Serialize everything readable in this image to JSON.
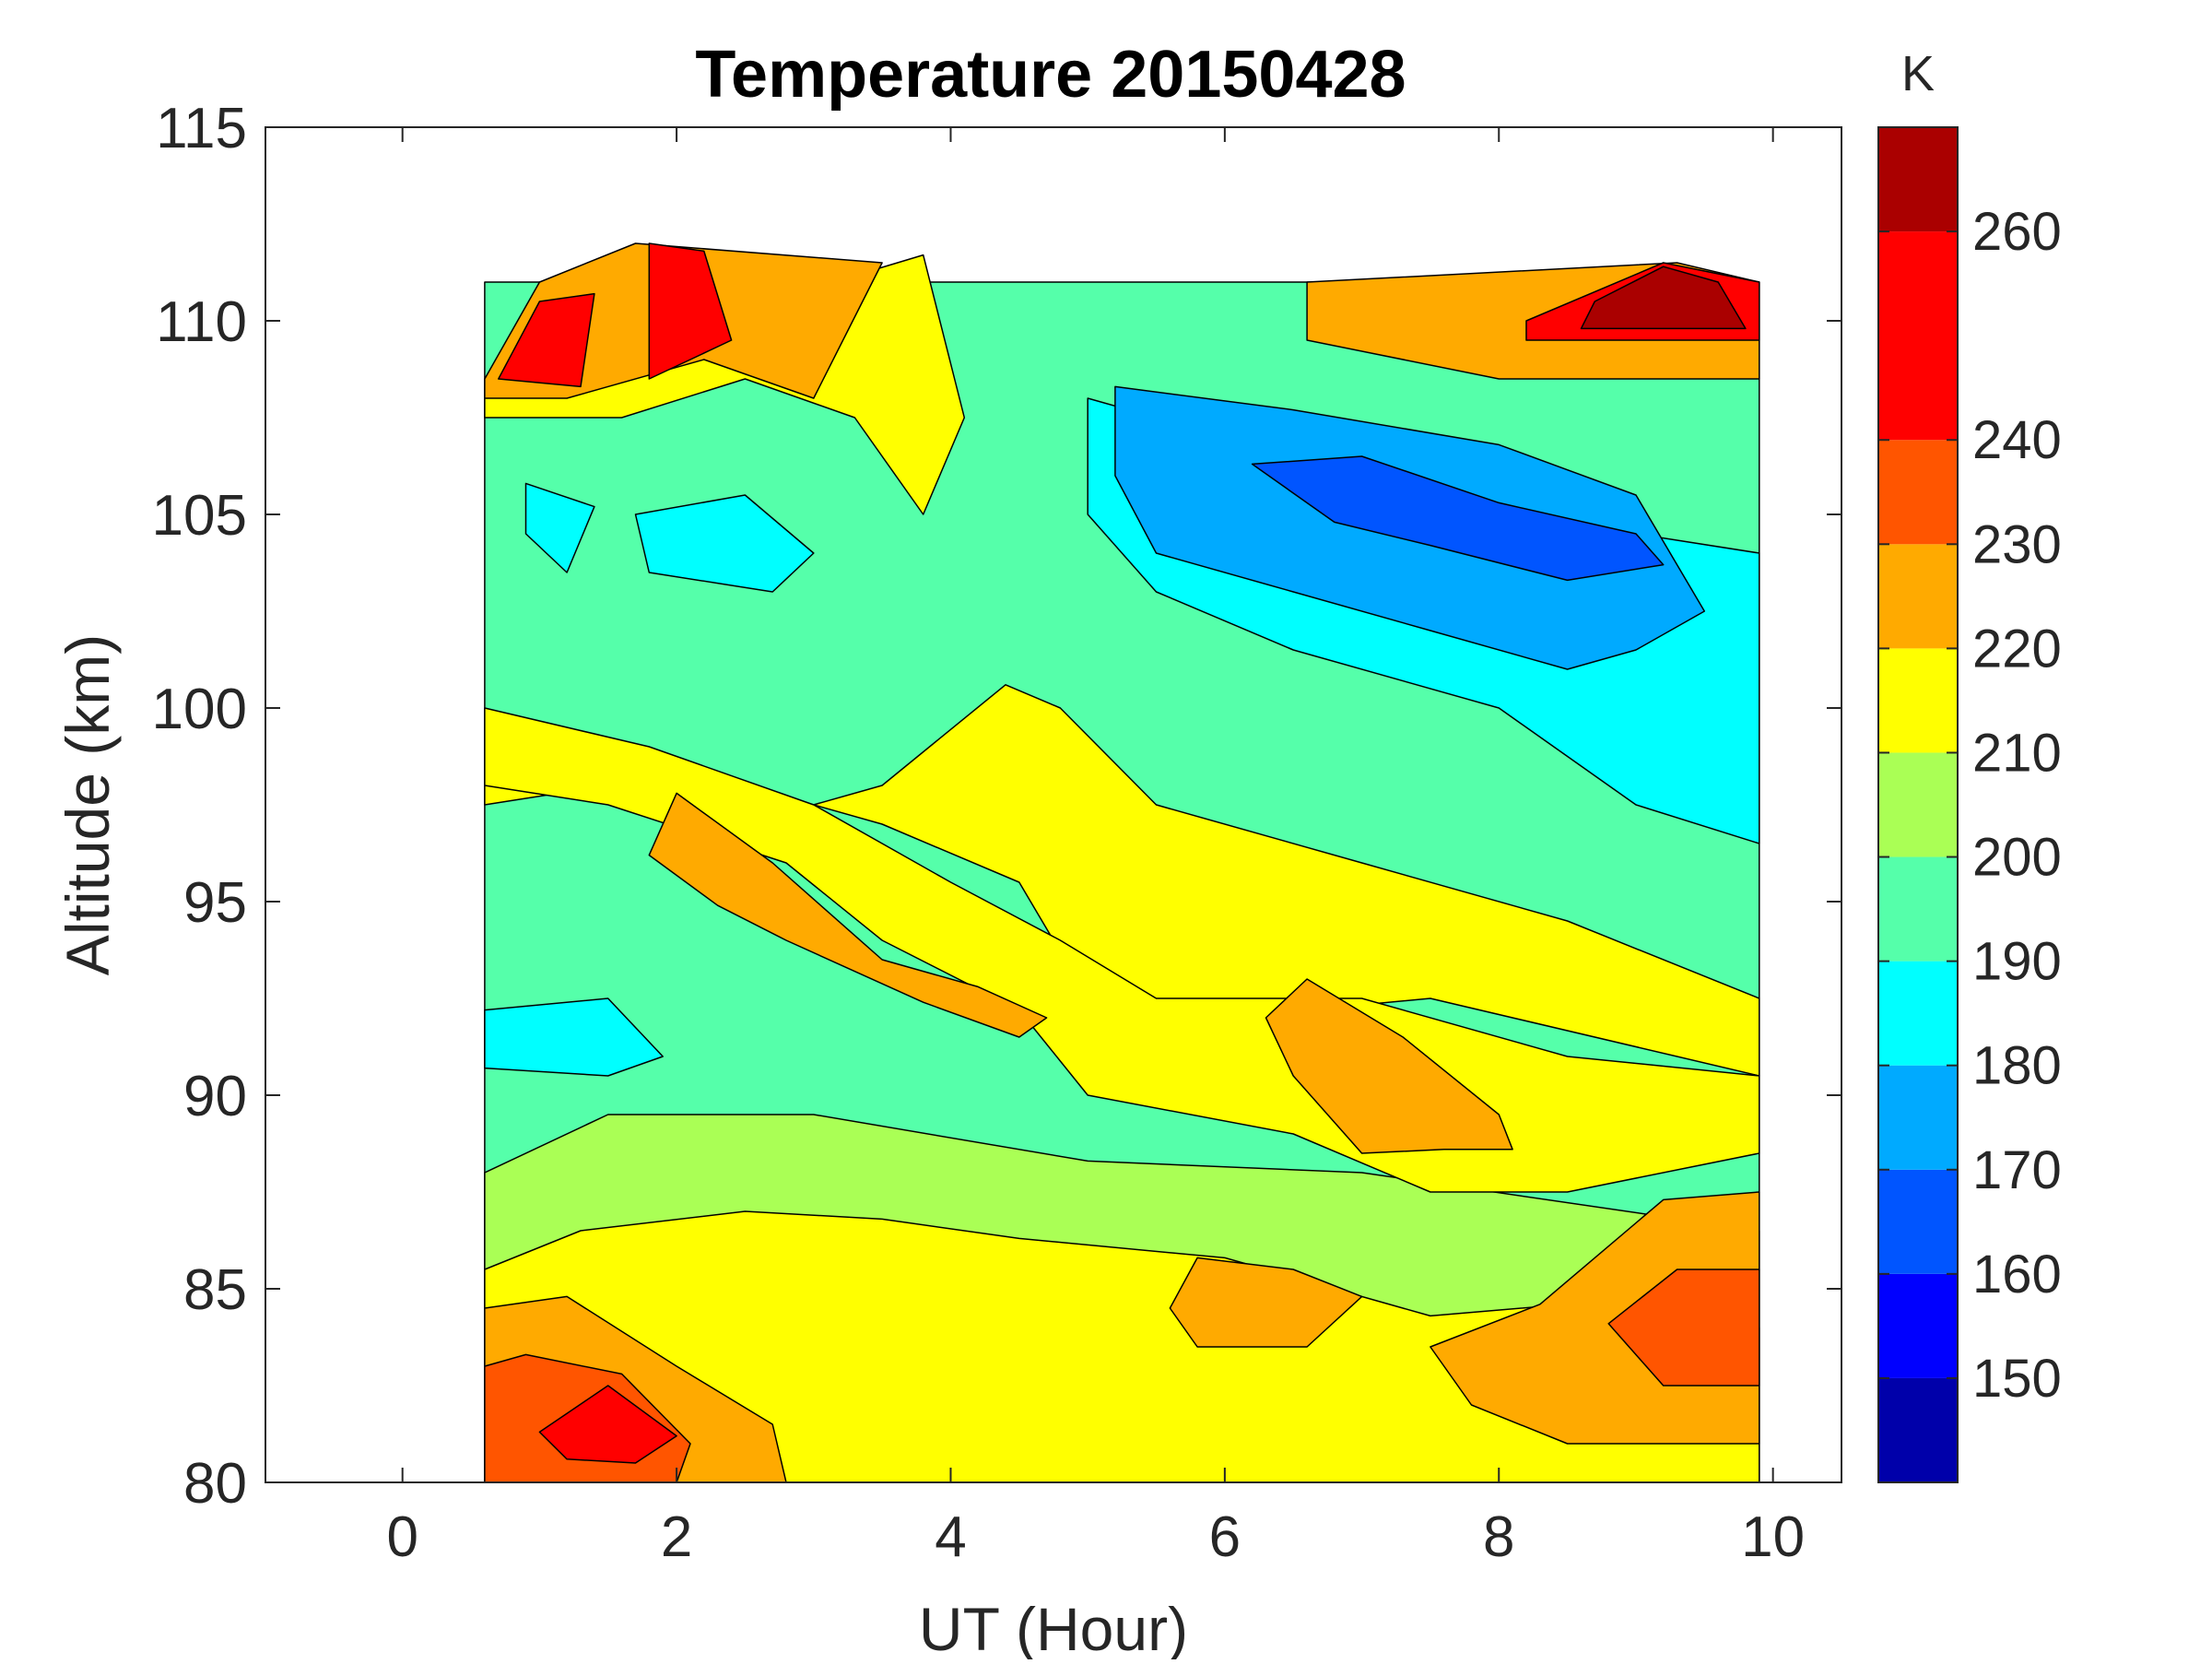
{
  "chart_data": {
    "type": "heatmap",
    "subtype": "filled-contour",
    "title": "Temperature 20150428",
    "xlabel": "UT (Hour)",
    "ylabel": "Altitude (km)",
    "xlim": [
      -1,
      10.5
    ],
    "ylim": [
      80,
      115
    ],
    "xticks": [
      0,
      2,
      4,
      6,
      8,
      10
    ],
    "yticks": [
      80,
      85,
      90,
      95,
      100,
      105,
      110,
      115
    ],
    "data_x_range": [
      0.6,
      9.9
    ],
    "data_y_range": [
      80,
      112
    ],
    "colorbar": {
      "unit_label": "K",
      "range": [
        140,
        270
      ],
      "ticks": [
        150,
        160,
        170,
        180,
        190,
        200,
        210,
        220,
        230,
        240,
        260
      ],
      "levels": [
        {
          "from": 140,
          "to": 150,
          "color": "#0000aa"
        },
        {
          "from": 150,
          "to": 160,
          "color": "#0000ff"
        },
        {
          "from": 160,
          "to": 170,
          "color": "#0055ff"
        },
        {
          "from": 170,
          "to": 180,
          "color": "#00aaff"
        },
        {
          "from": 180,
          "to": 190,
          "color": "#00ffff"
        },
        {
          "from": 190,
          "to": 200,
          "color": "#55ffaa"
        },
        {
          "from": 200,
          "to": 210,
          "color": "#aaff55"
        },
        {
          "from": 210,
          "to": 220,
          "color": "#ffff00"
        },
        {
          "from": 220,
          "to": 230,
          "color": "#ffaa00"
        },
        {
          "from": 230,
          "to": 240,
          "color": "#ff5500"
        },
        {
          "from": 240,
          "to": 260,
          "color": "#ff0000"
        },
        {
          "from": 260,
          "to": 270,
          "color": "#aa0000"
        }
      ]
    },
    "regions": [
      {
        "name": "base",
        "value": 195,
        "points": [
          [
            0.6,
            80
          ],
          [
            9.9,
            80
          ],
          [
            9.9,
            111
          ],
          [
            0.6,
            111
          ]
        ]
      },
      {
        "name": "lower-green",
        "value": 205,
        "points": [
          [
            0.6,
            80
          ],
          [
            9.9,
            80
          ],
          [
            9.9,
            86.5
          ],
          [
            7,
            88
          ],
          [
            5,
            88.3
          ],
          [
            3,
            89.5
          ],
          [
            1.5,
            89.5
          ],
          [
            0.6,
            88
          ]
        ]
      },
      {
        "name": "lower-yellow",
        "value": 215,
        "points": [
          [
            0.6,
            80
          ],
          [
            9.9,
            80
          ],
          [
            9.9,
            84
          ],
          [
            8.5,
            84.6
          ],
          [
            7.5,
            84.3
          ],
          [
            6,
            85.8
          ],
          [
            4.5,
            86.3
          ],
          [
            3.5,
            86.8
          ],
          [
            2.5,
            87
          ],
          [
            1.3,
            86.5
          ],
          [
            0.6,
            85.5
          ]
        ]
      },
      {
        "name": "lower-orange-left",
        "value": 225,
        "points": [
          [
            0.6,
            80
          ],
          [
            2.8,
            80
          ],
          [
            2.7,
            81.5
          ],
          [
            2,
            83
          ],
          [
            1.2,
            84.8
          ],
          [
            0.6,
            84.5
          ]
        ]
      },
      {
        "name": "lower-orange-center",
        "value": 225,
        "points": [
          [
            5.8,
            85.8
          ],
          [
            6.5,
            85.5
          ],
          [
            7,
            84.8
          ],
          [
            6.6,
            83.5
          ],
          [
            5.8,
            83.5
          ],
          [
            5.6,
            84.5
          ]
        ]
      },
      {
        "name": "lower-orange-right",
        "value": 225,
        "points": [
          [
            7.5,
            83.5
          ],
          [
            8.3,
            84.6
          ],
          [
            9.2,
            87.3
          ],
          [
            9.9,
            87.5
          ],
          [
            9.9,
            81
          ],
          [
            8.5,
            81
          ],
          [
            7.8,
            82
          ]
        ]
      },
      {
        "name": "lower-red-left",
        "value": 235,
        "points": [
          [
            0.6,
            80
          ],
          [
            2,
            80
          ],
          [
            2.1,
            81
          ],
          [
            1.6,
            82.8
          ],
          [
            0.9,
            83.3
          ],
          [
            0.6,
            83
          ]
        ]
      },
      {
        "name": "lower-red-right",
        "value": 235,
        "points": [
          [
            8.8,
            84.1
          ],
          [
            9.3,
            85.5
          ],
          [
            9.9,
            85.5
          ],
          [
            9.9,
            82.5
          ],
          [
            9.2,
            82.5
          ]
        ]
      },
      {
        "name": "lower-deep-red",
        "value": 245,
        "points": [
          [
            1.0,
            81.3
          ],
          [
            1.5,
            82.5
          ],
          [
            2.0,
            81.2
          ],
          [
            1.7,
            80.5
          ],
          [
            1.2,
            80.6
          ]
        ]
      },
      {
        "name": "mid-yellow-band",
        "value": 215,
        "points": [
          [
            0.6,
            99.5
          ],
          [
            2,
            98.5
          ],
          [
            3.5,
            97
          ],
          [
            4.5,
            95.5
          ],
          [
            5,
            92.5
          ],
          [
            6,
            92
          ],
          [
            7.5,
            92.5
          ],
          [
            9.9,
            90.5
          ],
          [
            9.9,
            92.5
          ],
          [
            8.5,
            94.5
          ],
          [
            7,
            96
          ],
          [
            5.5,
            97.5
          ],
          [
            4.8,
            100
          ],
          [
            4.4,
            100.6
          ],
          [
            3.5,
            98
          ],
          [
            2.5,
            97
          ],
          [
            1.5,
            98
          ],
          [
            0.6,
            97.5
          ]
        ]
      },
      {
        "name": "mid-yellow-left",
        "value": 215,
        "points": [
          [
            0.6,
            98
          ],
          [
            1.5,
            97.5
          ],
          [
            2.8,
            96
          ],
          [
            3.5,
            94
          ],
          [
            4.5,
            92.2
          ],
          [
            5,
            90
          ],
          [
            6.5,
            89
          ],
          [
            7.5,
            87.5
          ],
          [
            8.5,
            87.5
          ],
          [
            9.9,
            88.5
          ],
          [
            9.9,
            90.5
          ],
          [
            8.5,
            91
          ],
          [
            7,
            92.5
          ],
          [
            5.5,
            92.5
          ],
          [
            4.8,
            94
          ],
          [
            4,
            95.5
          ],
          [
            3,
            97.5
          ],
          [
            1.8,
            99
          ],
          [
            0.6,
            100
          ]
        ]
      },
      {
        "name": "mid-orange-diagonal",
        "value": 225,
        "points": [
          [
            2,
            97.8
          ],
          [
            2.7,
            96
          ],
          [
            3.5,
            93.5
          ],
          [
            4.2,
            92.8
          ],
          [
            4.7,
            92
          ],
          [
            4.5,
            91.5
          ],
          [
            3.8,
            92.4
          ],
          [
            2.8,
            94
          ],
          [
            2.3,
            94.9
          ],
          [
            1.8,
            96.2
          ]
        ]
      },
      {
        "name": "mid-orange-right",
        "value": 225,
        "points": [
          [
            6.6,
            93
          ],
          [
            7.3,
            91.5
          ],
          [
            8,
            89.5
          ],
          [
            8.1,
            88.6
          ],
          [
            7.6,
            88.6
          ],
          [
            7,
            88.5
          ],
          [
            6.5,
            90.5
          ],
          [
            6.3,
            92
          ]
        ]
      },
      {
        "name": "mid-cyan-left",
        "value": 185,
        "points": [
          [
            0.6,
            92.2
          ],
          [
            1.5,
            92.5
          ],
          [
            1.9,
            91
          ],
          [
            1.5,
            90.5
          ],
          [
            0.6,
            90.7
          ]
        ]
      },
      {
        "name": "upper-cyan",
        "value": 185,
        "points": [
          [
            5,
            108
          ],
          [
            6,
            107
          ],
          [
            7.5,
            106
          ],
          [
            9,
            104.5
          ],
          [
            9.9,
            104
          ],
          [
            9.9,
            96.5
          ],
          [
            9,
            97.5
          ],
          [
            8,
            100
          ],
          [
            6.5,
            101.5
          ],
          [
            5.5,
            103
          ],
          [
            5,
            105
          ]
        ]
      },
      {
        "name": "upper-blue",
        "value": 175,
        "points": [
          [
            5.2,
            108.3
          ],
          [
            6.5,
            107.7
          ],
          [
            8,
            106.8
          ],
          [
            9,
            105.5
          ],
          [
            9.5,
            102.5
          ],
          [
            9,
            101.5
          ],
          [
            8.5,
            101
          ],
          [
            7.5,
            102
          ],
          [
            6.5,
            103
          ],
          [
            5.5,
            104
          ],
          [
            5.2,
            106
          ]
        ]
      },
      {
        "name": "upper-darkblue",
        "value": 165,
        "points": [
          [
            6.2,
            106.3
          ],
          [
            7,
            106.5
          ],
          [
            8,
            105.3
          ],
          [
            9,
            104.5
          ],
          [
            9.2,
            103.7
          ],
          [
            8.5,
            103.3
          ],
          [
            7.5,
            104.2
          ],
          [
            6.8,
            104.8
          ]
        ]
      },
      {
        "name": "upper-cyan-left",
        "value": 185,
        "points": [
          [
            1.7,
            105
          ],
          [
            2.5,
            105.5
          ],
          [
            3,
            104
          ],
          [
            2.7,
            103
          ],
          [
            1.8,
            103.5
          ]
        ]
      },
      {
        "name": "upper-cyan-far-left",
        "value": 185,
        "points": [
          [
            0.9,
            105.8
          ],
          [
            1.4,
            105.2
          ],
          [
            1.2,
            103.5
          ],
          [
            0.9,
            104.5
          ]
        ]
      },
      {
        "name": "top-yellow",
        "value": 215,
        "points": [
          [
            0.6,
            107.5
          ],
          [
            1.6,
            107.5
          ],
          [
            2.5,
            108.5
          ],
          [
            3.3,
            107.5
          ],
          [
            3.8,
            105
          ],
          [
            4.1,
            107.5
          ],
          [
            3.8,
            111.7
          ],
          [
            0.6,
            108.3
          ]
        ]
      },
      {
        "name": "top-orange",
        "value": 225,
        "points": [
          [
            0.6,
            108
          ],
          [
            1.2,
            108
          ],
          [
            2.2,
            109
          ],
          [
            3,
            108
          ],
          [
            3.5,
            111.5
          ],
          [
            1.7,
            112
          ],
          [
            1.0,
            111
          ],
          [
            0.6,
            108.5
          ]
        ]
      },
      {
        "name": "top-red",
        "value": 245,
        "points": [
          [
            0.7,
            108.5
          ],
          [
            1.3,
            108.3
          ],
          [
            1.4,
            110.7
          ],
          [
            1.0,
            110.5
          ]
        ]
      },
      {
        "name": "top-red-2",
        "value": 245,
        "points": [
          [
            1.8,
            108.5
          ],
          [
            2.4,
            109.5
          ],
          [
            2.2,
            111.8
          ],
          [
            1.8,
            112
          ]
        ]
      },
      {
        "name": "top-right-orange",
        "value": 225,
        "points": [
          [
            6.6,
            109.5
          ],
          [
            8,
            108.5
          ],
          [
            9.9,
            108.5
          ],
          [
            9.9,
            111
          ],
          [
            9.3,
            111.5
          ],
          [
            6.6,
            111
          ]
        ]
      },
      {
        "name": "top-right-red",
        "value": 245,
        "points": [
          [
            8.2,
            109.5
          ],
          [
            9.9,
            109.5
          ],
          [
            9.9,
            111
          ],
          [
            9.2,
            111.5
          ],
          [
            8.2,
            110
          ]
        ]
      },
      {
        "name": "top-right-darkred",
        "value": 265,
        "points": [
          [
            8.6,
            109.8
          ],
          [
            9.8,
            109.8
          ],
          [
            9.6,
            111
          ],
          [
            9.2,
            111.4
          ],
          [
            8.7,
            110.5
          ]
        ]
      }
    ]
  }
}
